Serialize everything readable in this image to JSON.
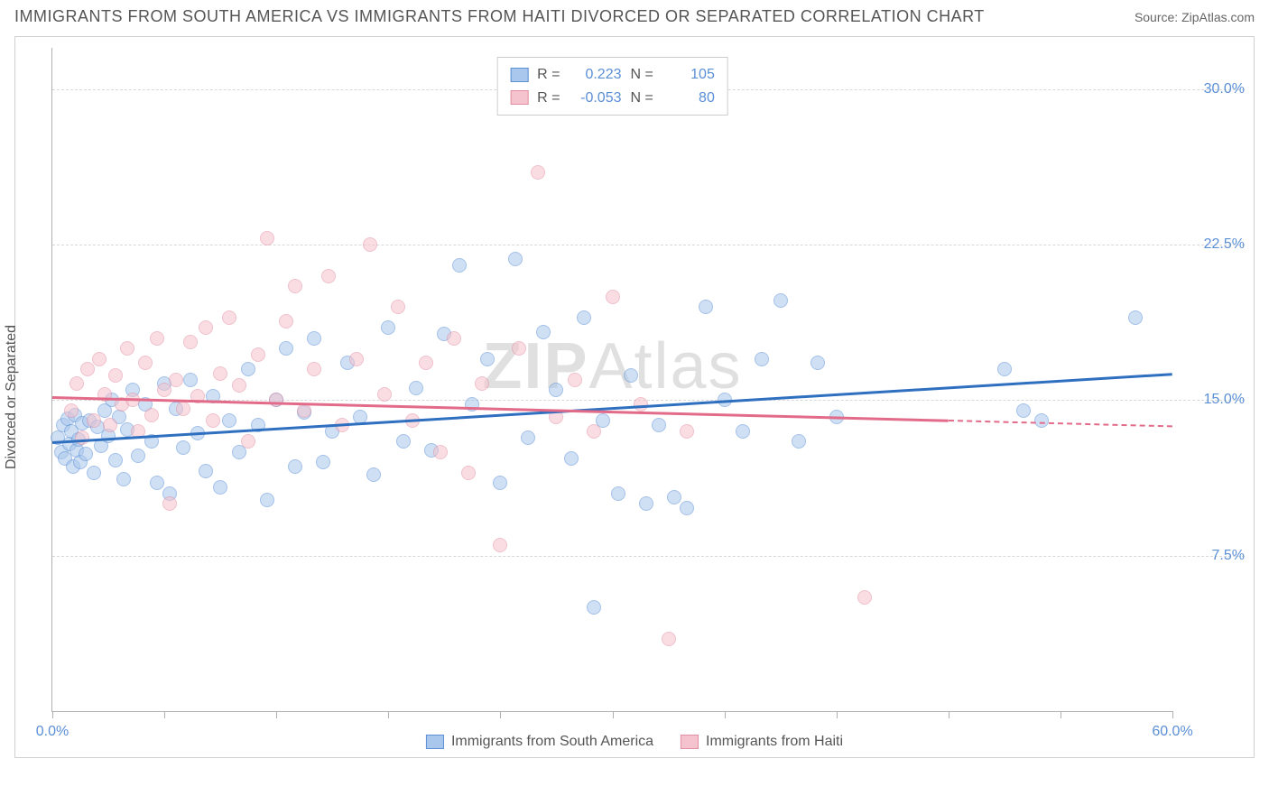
{
  "header": {
    "title": "IMMIGRANTS FROM SOUTH AMERICA VS IMMIGRANTS FROM HAITI DIVORCED OR SEPARATED CORRELATION CHART",
    "source": "Source: ZipAtlas.com"
  },
  "chart": {
    "type": "scatter",
    "ylabel": "Divorced or Separated",
    "watermark": "ZIPAtlas",
    "background_color": "#ffffff",
    "grid_color": "#d8d8d8",
    "axis_color": "#b0b0b0",
    "tick_label_color": "#5b8fd6",
    "xlim": [
      0,
      60
    ],
    "ylim": [
      0,
      32
    ],
    "xticks": [
      0,
      6,
      12,
      18,
      24,
      30,
      36,
      42,
      48,
      54,
      60
    ],
    "xtick_labels": {
      "0": "0.0%",
      "60": "60.0%"
    },
    "yticks": [
      7.5,
      15.0,
      22.5,
      30.0
    ],
    "ytick_labels": [
      "7.5%",
      "15.0%",
      "22.5%",
      "30.0%"
    ],
    "marker_radius": 8,
    "marker_opacity": 0.55,
    "series": [
      {
        "name": "Immigrants from South America",
        "fill": "#a9c7ec",
        "stroke": "#5b8fd6",
        "trend": {
          "color": "#2f6fc0",
          "y_at_xmin": 13.0,
          "y_at_xmax": 16.3,
          "solid_until_x": 60
        },
        "stats": {
          "R": "0.223",
          "N": "105"
        },
        "points": [
          [
            0.3,
            13.2
          ],
          [
            0.5,
            12.5
          ],
          [
            0.6,
            13.8
          ],
          [
            0.7,
            12.2
          ],
          [
            0.8,
            14.1
          ],
          [
            0.9,
            12.9
          ],
          [
            1.0,
            13.5
          ],
          [
            1.1,
            11.8
          ],
          [
            1.2,
            14.3
          ],
          [
            1.3,
            12.6
          ],
          [
            1.4,
            13.1
          ],
          [
            1.5,
            12.0
          ],
          [
            1.6,
            13.9
          ],
          [
            1.8,
            12.4
          ],
          [
            2.0,
            14.0
          ],
          [
            2.2,
            11.5
          ],
          [
            2.4,
            13.7
          ],
          [
            2.6,
            12.8
          ],
          [
            2.8,
            14.5
          ],
          [
            3.0,
            13.3
          ],
          [
            3.2,
            15.0
          ],
          [
            3.4,
            12.1
          ],
          [
            3.6,
            14.2
          ],
          [
            3.8,
            11.2
          ],
          [
            4.0,
            13.6
          ],
          [
            4.3,
            15.5
          ],
          [
            4.6,
            12.3
          ],
          [
            5.0,
            14.8
          ],
          [
            5.3,
            13.0
          ],
          [
            5.6,
            11.0
          ],
          [
            6.0,
            15.8
          ],
          [
            6.3,
            10.5
          ],
          [
            6.6,
            14.6
          ],
          [
            7.0,
            12.7
          ],
          [
            7.4,
            16.0
          ],
          [
            7.8,
            13.4
          ],
          [
            8.2,
            11.6
          ],
          [
            8.6,
            15.2
          ],
          [
            9.0,
            10.8
          ],
          [
            9.5,
            14.0
          ],
          [
            10.0,
            12.5
          ],
          [
            10.5,
            16.5
          ],
          [
            11.0,
            13.8
          ],
          [
            11.5,
            10.2
          ],
          [
            12.0,
            15.0
          ],
          [
            12.5,
            17.5
          ],
          [
            13.0,
            11.8
          ],
          [
            13.5,
            14.4
          ],
          [
            14.0,
            18.0
          ],
          [
            14.5,
            12.0
          ],
          [
            15.0,
            13.5
          ],
          [
            15.8,
            16.8
          ],
          [
            16.5,
            14.2
          ],
          [
            17.2,
            11.4
          ],
          [
            18.0,
            18.5
          ],
          [
            18.8,
            13.0
          ],
          [
            19.5,
            15.6
          ],
          [
            20.3,
            12.6
          ],
          [
            21.0,
            18.2
          ],
          [
            21.8,
            21.5
          ],
          [
            22.5,
            14.8
          ],
          [
            23.3,
            17.0
          ],
          [
            24.0,
            11.0
          ],
          [
            24.8,
            21.8
          ],
          [
            25.5,
            13.2
          ],
          [
            26.3,
            18.3
          ],
          [
            27.0,
            15.5
          ],
          [
            27.8,
            12.2
          ],
          [
            28.5,
            19.0
          ],
          [
            29.0,
            5.0
          ],
          [
            29.5,
            14.0
          ],
          [
            30.3,
            10.5
          ],
          [
            31.0,
            16.2
          ],
          [
            31.8,
            10.0
          ],
          [
            32.5,
            13.8
          ],
          [
            33.3,
            10.3
          ],
          [
            34.0,
            9.8
          ],
          [
            35.0,
            19.5
          ],
          [
            36.0,
            15.0
          ],
          [
            37.0,
            13.5
          ],
          [
            38.0,
            17.0
          ],
          [
            39.0,
            19.8
          ],
          [
            40.0,
            13.0
          ],
          [
            41.0,
            16.8
          ],
          [
            42.0,
            14.2
          ],
          [
            51.0,
            16.5
          ],
          [
            52.0,
            14.5
          ],
          [
            53.0,
            14.0
          ],
          [
            58.0,
            19.0
          ]
        ]
      },
      {
        "name": "Immigrants from Haiti",
        "fill": "#f5c3cd",
        "stroke": "#e28fa3",
        "trend": {
          "color": "#e26b8a",
          "y_at_xmin": 15.2,
          "y_at_xmax": 13.8,
          "solid_until_x": 48
        },
        "stats": {
          "R": "-0.053",
          "N": "80"
        },
        "points": [
          [
            1.0,
            14.5
          ],
          [
            1.3,
            15.8
          ],
          [
            1.6,
            13.2
          ],
          [
            1.9,
            16.5
          ],
          [
            2.2,
            14.0
          ],
          [
            2.5,
            17.0
          ],
          [
            2.8,
            15.3
          ],
          [
            3.1,
            13.8
          ],
          [
            3.4,
            16.2
          ],
          [
            3.7,
            14.8
          ],
          [
            4.0,
            17.5
          ],
          [
            4.3,
            15.0
          ],
          [
            4.6,
            13.5
          ],
          [
            5.0,
            16.8
          ],
          [
            5.3,
            14.3
          ],
          [
            5.6,
            18.0
          ],
          [
            6.0,
            15.5
          ],
          [
            6.3,
            10.0
          ],
          [
            6.6,
            16.0
          ],
          [
            7.0,
            14.6
          ],
          [
            7.4,
            17.8
          ],
          [
            7.8,
            15.2
          ],
          [
            8.2,
            18.5
          ],
          [
            8.6,
            14.0
          ],
          [
            9.0,
            16.3
          ],
          [
            9.5,
            19.0
          ],
          [
            10.0,
            15.7
          ],
          [
            10.5,
            13.0
          ],
          [
            11.0,
            17.2
          ],
          [
            11.5,
            22.8
          ],
          [
            12.0,
            15.0
          ],
          [
            12.5,
            18.8
          ],
          [
            13.0,
            20.5
          ],
          [
            13.5,
            14.5
          ],
          [
            14.0,
            16.5
          ],
          [
            14.8,
            21.0
          ],
          [
            15.5,
            13.8
          ],
          [
            16.3,
            17.0
          ],
          [
            17.0,
            22.5
          ],
          [
            17.8,
            15.3
          ],
          [
            18.5,
            19.5
          ],
          [
            19.3,
            14.0
          ],
          [
            20.0,
            16.8
          ],
          [
            20.8,
            12.5
          ],
          [
            21.5,
            18.0
          ],
          [
            22.3,
            11.5
          ],
          [
            23.0,
            15.8
          ],
          [
            24.0,
            8.0
          ],
          [
            25.0,
            17.5
          ],
          [
            26.0,
            26.0
          ],
          [
            27.0,
            14.2
          ],
          [
            28.0,
            16.0
          ],
          [
            29.0,
            13.5
          ],
          [
            30.0,
            20.0
          ],
          [
            31.5,
            14.8
          ],
          [
            33.0,
            3.5
          ],
          [
            34.0,
            13.5
          ],
          [
            43.5,
            5.5
          ]
        ]
      }
    ],
    "bottom_legend": [
      {
        "label": "Immigrants from South America",
        "fill": "#a9c7ec",
        "stroke": "#5b8fd6"
      },
      {
        "label": "Immigrants from Haiti",
        "fill": "#f5c3cd",
        "stroke": "#e28fa3"
      }
    ]
  }
}
